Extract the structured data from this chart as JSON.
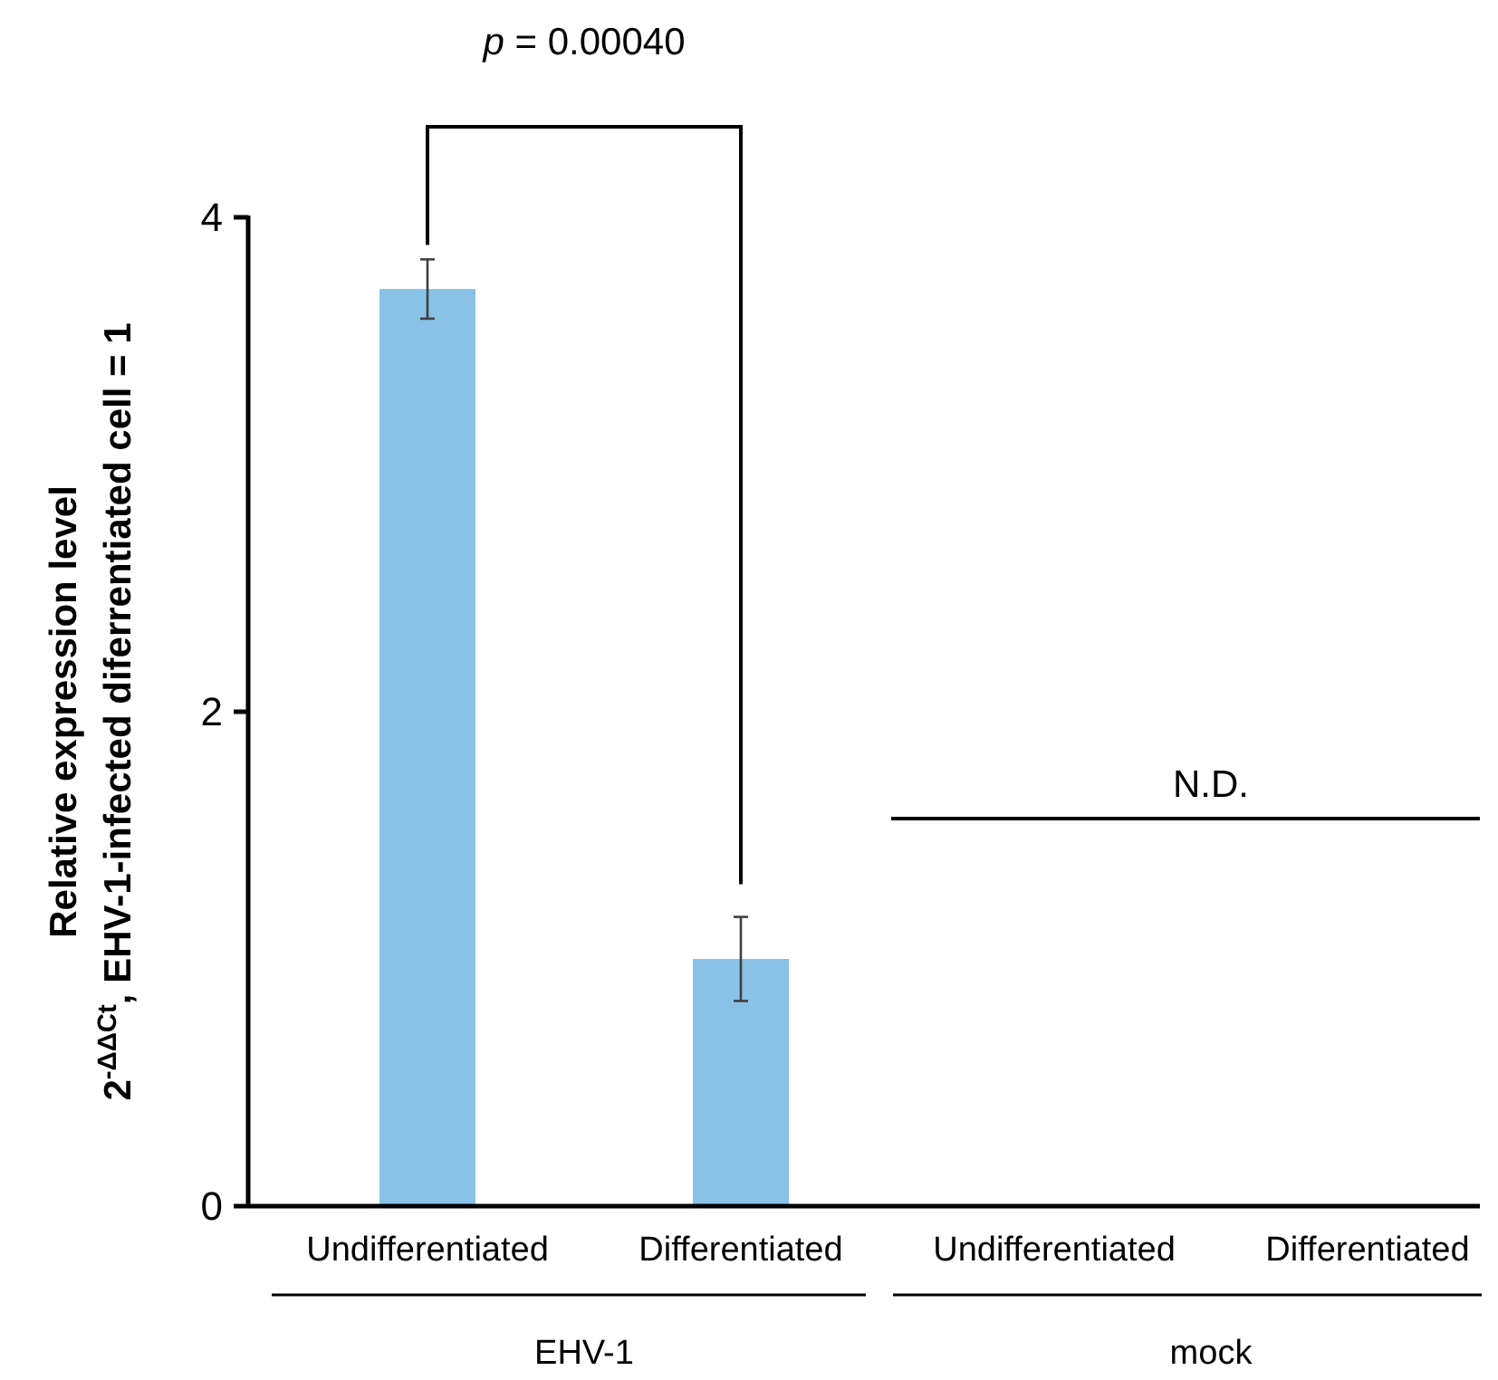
{
  "chart_data": {
    "type": "bar",
    "categories": [
      "Undifferentiated",
      "Differentiated",
      "Undifferentiated",
      "Differentiated"
    ],
    "values": [
      3.71,
      1.0,
      null,
      null
    ],
    "errors": [
      [
        3.59,
        3.83
      ],
      [
        0.83,
        1.17
      ],
      null,
      null
    ],
    "color": "#89c2e6",
    "ylim": [
      0,
      4
    ],
    "yticks": [
      0,
      2,
      4
    ],
    "ylabel": "Relative expression level\n2$^{-ΔΔCt}$, EHV-1-infected diferrentiated cell = 1",
    "annotations": [
      "p = 0.00040",
      "N.D.",
      "EHV-1",
      "mock"
    ],
    "grid": false
  }
}
